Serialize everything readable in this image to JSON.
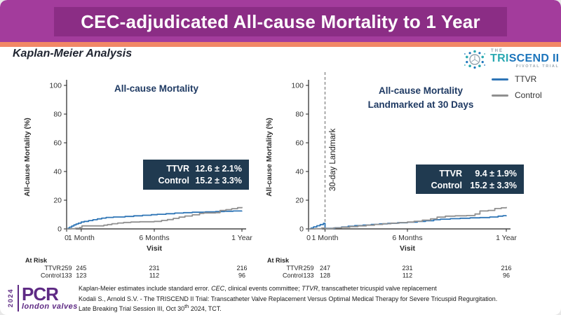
{
  "slide": {
    "title": "CEC-adjudicated All-cause Mortality to 1 Year",
    "subtitle": "Kaplan-Meier Analysis"
  },
  "logos": {
    "triscend": {
      "the": "THE",
      "name_accent": "TRI",
      "name_rest": "SCEND II",
      "tagline": "PIVOTAL TRIAL"
    },
    "pcr": {
      "year": "2024",
      "acronym": "PCR",
      "name": "london valves"
    }
  },
  "colors": {
    "band_purple": "#A33C9C",
    "band_purple_dark": "#8B2D85",
    "accent_orange": "#F18766",
    "navy": "#1F3A63",
    "stats_box_bg": "#203A50",
    "ttvr_blue": "#2E75B6",
    "control_gray": "#8F8F8F"
  },
  "legend": {
    "items": [
      {
        "label": "TTVR",
        "color": "#2E75B6"
      },
      {
        "label": "Control",
        "color": "#8F8F8F"
      }
    ]
  },
  "chart_data": [
    {
      "type": "line",
      "subtype": "kaplan-meier-step",
      "title_lines": [
        "All-cause Mortality"
      ],
      "xlabel": "Visit",
      "ylabel": "All-cause Mortality (%)",
      "ylim": [
        0,
        100
      ],
      "yticks": [
        0,
        20,
        40,
        60,
        80,
        100
      ],
      "xlim_months": [
        0,
        12
      ],
      "xticks": [
        {
          "month": 0,
          "label": "0"
        },
        {
          "month": 1,
          "label": "1 Month"
        },
        {
          "month": 6,
          "label": "6 Months"
        },
        {
          "month": 12,
          "label": "1 Year"
        }
      ],
      "series": [
        {
          "name": "TTVR",
          "color": "#2E75B6",
          "points": [
            [
              0,
              0
            ],
            [
              0.1,
              0.5
            ],
            [
              0.2,
              1.2
            ],
            [
              0.35,
              2.0
            ],
            [
              0.5,
              2.8
            ],
            [
              0.65,
              3.4
            ],
            [
              0.8,
              4.0
            ],
            [
              1.0,
              4.8
            ],
            [
              1.2,
              5.2
            ],
            [
              1.5,
              5.8
            ],
            [
              1.8,
              6.4
            ],
            [
              2.1,
              7.0
            ],
            [
              2.4,
              7.5
            ],
            [
              2.7,
              8.0
            ],
            [
              3.2,
              8.3
            ],
            [
              4.0,
              8.7
            ],
            [
              4.6,
              9.1
            ],
            [
              5.2,
              9.5
            ],
            [
              5.8,
              9.9
            ],
            [
              6.2,
              10.2
            ],
            [
              6.8,
              10.6
            ],
            [
              7.4,
              11.0
            ],
            [
              8.0,
              11.3
            ],
            [
              8.6,
              11.6
            ],
            [
              9.5,
              11.9
            ],
            [
              10.2,
              12.1
            ],
            [
              10.8,
              12.3
            ],
            [
              11.4,
              12.5
            ],
            [
              12,
              12.6
            ]
          ]
        },
        {
          "name": "Control",
          "color": "#8F8F8F",
          "points": [
            [
              0,
              0
            ],
            [
              0.3,
              0.2
            ],
            [
              0.6,
              0.5
            ],
            [
              0.9,
              1.0
            ],
            [
              1.05,
              2.1
            ],
            [
              2.55,
              2.6
            ],
            [
              2.8,
              3.0
            ],
            [
              3.1,
              3.6
            ],
            [
              3.5,
              4.1
            ],
            [
              3.9,
              4.5
            ],
            [
              4.4,
              4.8
            ],
            [
              5.0,
              5.0
            ],
            [
              6.0,
              5.2
            ],
            [
              6.5,
              5.9
            ],
            [
              6.9,
              6.5
            ],
            [
              7.3,
              7.3
            ],
            [
              7.7,
              8.2
            ],
            [
              8.1,
              9.0
            ],
            [
              8.6,
              9.8
            ],
            [
              9.1,
              10.8
            ],
            [
              9.4,
              11.1
            ],
            [
              10.2,
              11.3
            ],
            [
              10.5,
              12.9
            ],
            [
              10.9,
              13.4
            ],
            [
              11.3,
              14.1
            ],
            [
              11.7,
              14.8
            ],
            [
              12,
              15.2
            ]
          ]
        }
      ],
      "stats": {
        "rows": [
          {
            "label": "TTVR",
            "value": "12.6 ± 2.1%"
          },
          {
            "label": "Control",
            "value": "15.2 ± 3.3%"
          }
        ]
      },
      "at_risk": {
        "label": "At Risk",
        "rows": [
          {
            "name": "TTVR",
            "values": [
              "259",
              "245",
              "231",
              "216"
            ]
          },
          {
            "name": "Control",
            "values": [
              "133",
              "123",
              "112",
              "96"
            ]
          }
        ]
      }
    },
    {
      "type": "line",
      "subtype": "kaplan-meier-step",
      "title_lines": [
        "All-cause Mortality",
        "Landmarked at 30 Days"
      ],
      "xlabel": "Visit",
      "ylabel": "All-cause Mortality (%)",
      "ylim": [
        0,
        100
      ],
      "yticks": [
        0,
        20,
        40,
        60,
        80,
        100
      ],
      "xlim_months": [
        0,
        12
      ],
      "xticks": [
        {
          "month": 0,
          "label": "0"
        },
        {
          "month": 1,
          "label": "1 Month"
        },
        {
          "month": 6,
          "label": "6 Months"
        },
        {
          "month": 12,
          "label": "1 Year"
        }
      ],
      "landmark": {
        "month": 1,
        "label": "30-day Landmark"
      },
      "series": [
        {
          "name": "TTVR",
          "color": "#2E75B6",
          "points": [
            [
              0,
              0
            ],
            [
              0.15,
              0.6
            ],
            [
              0.3,
              1.4
            ],
            [
              0.5,
              2.2
            ],
            [
              0.7,
              3.0
            ],
            [
              0.9,
              3.9
            ],
            [
              1.0,
              0.4
            ],
            [
              1.6,
              0.8
            ],
            [
              2.0,
              1.3
            ],
            [
              2.4,
              1.9
            ],
            [
              2.8,
              2.3
            ],
            [
              3.3,
              2.7
            ],
            [
              3.8,
              3.1
            ],
            [
              4.3,
              3.5
            ],
            [
              4.8,
              3.9
            ],
            [
              5.4,
              4.3
            ],
            [
              6.0,
              4.7
            ],
            [
              6.6,
              5.2
            ],
            [
              7.1,
              5.7
            ],
            [
              7.6,
              6.4
            ],
            [
              8.0,
              6.8
            ],
            [
              8.6,
              7.1
            ],
            [
              9.2,
              7.4
            ],
            [
              9.8,
              7.7
            ],
            [
              10.4,
              7.9
            ],
            [
              11.0,
              8.3
            ],
            [
              11.5,
              8.9
            ],
            [
              11.8,
              9.2
            ],
            [
              12,
              9.4
            ]
          ]
        },
        {
          "name": "Control",
          "color": "#8F8F8F",
          "points": [
            [
              0,
              0
            ],
            [
              0.4,
              0.2
            ],
            [
              0.8,
              0.6
            ],
            [
              1.0,
              0.3
            ],
            [
              1.5,
              0.7
            ],
            [
              2.0,
              1.1
            ],
            [
              2.5,
              1.6
            ],
            [
              3.0,
              2.1
            ],
            [
              3.5,
              2.6
            ],
            [
              4.0,
              3.1
            ],
            [
              4.5,
              3.6
            ],
            [
              5.0,
              4.0
            ],
            [
              5.5,
              4.4
            ],
            [
              6.0,
              4.8
            ],
            [
              6.4,
              5.3
            ],
            [
              6.9,
              6.1
            ],
            [
              7.4,
              7.0
            ],
            [
              7.8,
              8.2
            ],
            [
              8.3,
              8.9
            ],
            [
              8.9,
              9.1
            ],
            [
              9.6,
              9.3
            ],
            [
              10.1,
              10.4
            ],
            [
              10.4,
              12.5
            ],
            [
              10.9,
              12.9
            ],
            [
              11.3,
              14.2
            ],
            [
              11.7,
              14.7
            ],
            [
              12,
              15.2
            ]
          ]
        }
      ],
      "stats": {
        "rows": [
          {
            "label": "TTVR",
            "value": "9.4 ± 1.9%"
          },
          {
            "label": "Control",
            "value": "15.2 ± 3.3%"
          }
        ]
      },
      "at_risk": {
        "label": "At Risk",
        "rows": [
          {
            "name": "TTVR",
            "values": [
              "259",
              "247",
              "231",
              "216"
            ]
          },
          {
            "name": "Control",
            "values": [
              "133",
              "128",
              "112",
              "96"
            ]
          }
        ]
      }
    }
  ],
  "footer": {
    "note": {
      "p1": "Kaplan-Meier estimates include standard error.  ",
      "i1": "CEC",
      "p2": ", clinical events committee; ",
      "i2": "TTVR",
      "p3": ", transcatheter tricuspid valve replacement"
    },
    "citation_line1": "Kodali S., Arnold S.V. - The TRISCEND II Trial: Transcatheter Valve Replacement Versus Optimal Medical Therapy for Severe Tricuspid Regurgitation.",
    "citation_line2_pre": "Late Breaking Trial Session III, Oct 30",
    "citation_line2_sup": "th",
    "citation_line2_post": " 2024, TCT."
  }
}
